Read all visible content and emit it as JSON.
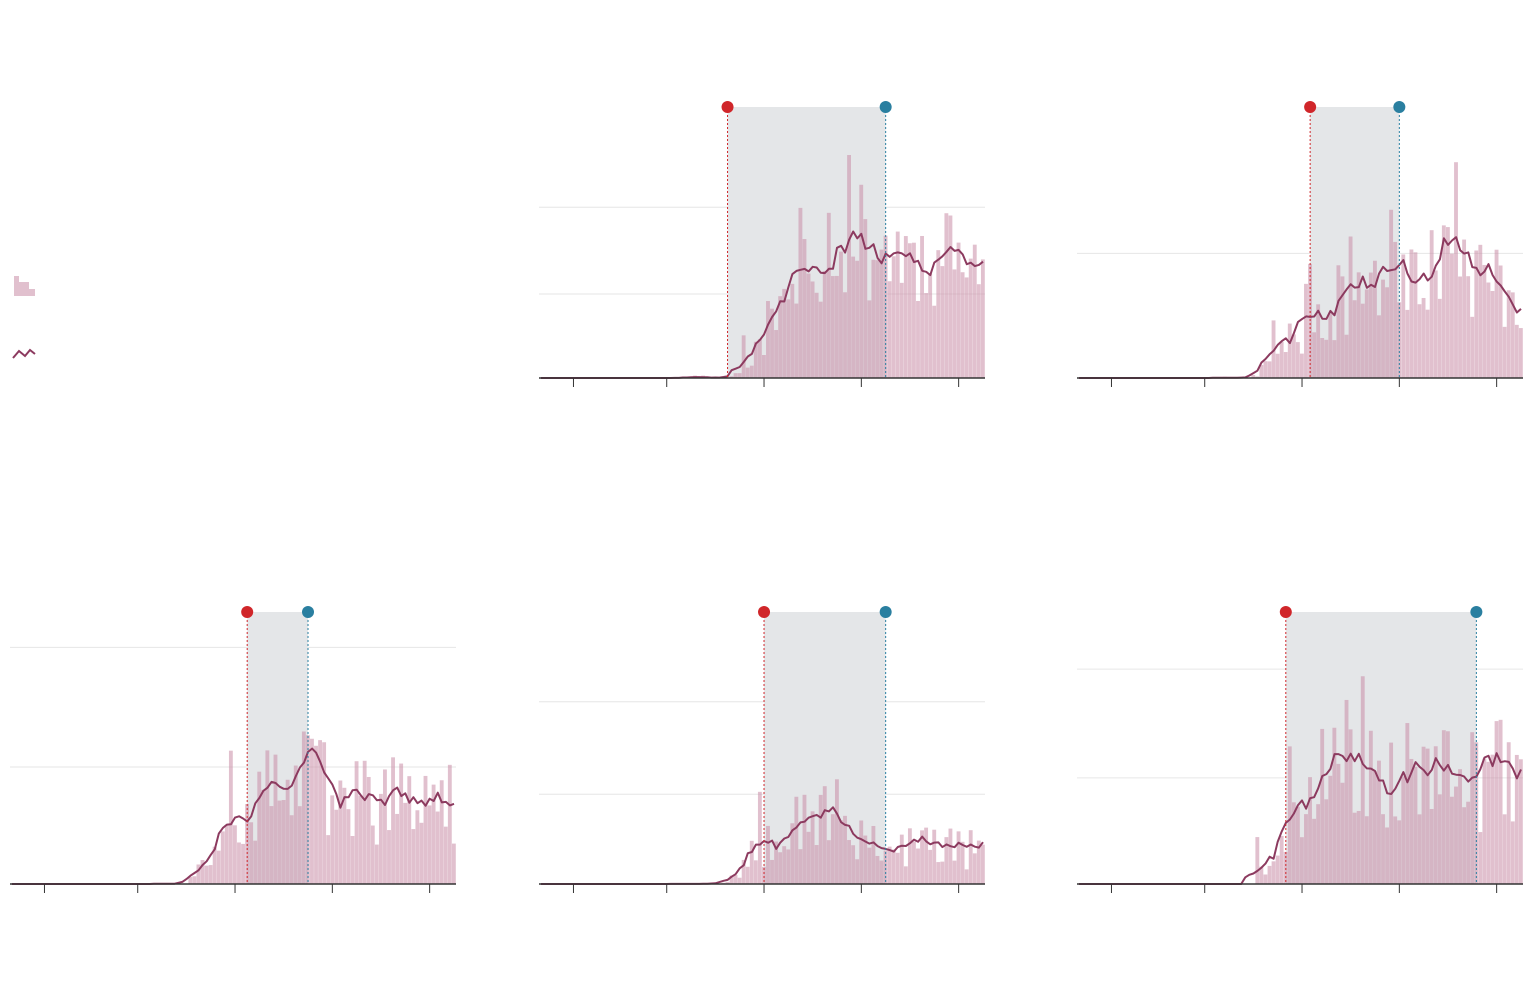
{
  "colors": {
    "bar": "#c98da6",
    "bar_opacity": 0.55,
    "line": "#8c3a5f",
    "start_marker": "#d0262a",
    "end_marker": "#2a7fa0",
    "shaded_band": "#e4e6e8",
    "gridline": "#e6e6e6",
    "axis": "#333333"
  },
  "legend": {
    "items": [
      {
        "name": "bar-swatch-icon",
        "symbol": "bars"
      },
      {
        "name": "line-swatch-icon",
        "symbol": "line"
      }
    ]
  },
  "chart_data": [
    {
      "type": "bar",
      "panel": "top-middle",
      "n_days": 110,
      "ylim": [
        0,
        1
      ],
      "gridlines": [
        0.31,
        0.63
      ],
      "onset": 45,
      "onset_level": 0.0,
      "peak_day": 74,
      "peak_level": 0.52,
      "late_level": 0.44,
      "noise": 0.28,
      "markers": {
        "start_day": 46,
        "end_day": 85
      },
      "x_ticks": [
        8,
        31,
        55,
        79,
        103
      ],
      "seed": 11
    },
    {
      "type": "bar",
      "panel": "top-right",
      "n_days": 110,
      "ylim": [
        0,
        1
      ],
      "gridlines": [
        0.46
      ],
      "onset": 45,
      "onset_level": 0.08,
      "peak_day": 85,
      "peak_level": 0.46,
      "late_level": 0.33,
      "noise": 0.3,
      "markers": {
        "start_day": 57,
        "end_day": 79
      },
      "x_ticks": [
        8,
        31,
        55,
        79,
        103
      ],
      "seed": 23
    },
    {
      "type": "bar",
      "panel": "bottom-left",
      "n_days": 110,
      "ylim": [
        0,
        1
      ],
      "gridlines": [
        0.43,
        0.87
      ],
      "onset": 44,
      "onset_level": 0.05,
      "peak_day": 70,
      "peak_level": 0.38,
      "late_level": 0.3,
      "noise": 0.35,
      "markers": {
        "start_day": 58,
        "end_day": 73
      },
      "x_ticks": [
        8,
        31,
        55,
        79,
        103
      ],
      "seed": 37
    },
    {
      "type": "bar",
      "panel": "bottom-middle",
      "n_days": 110,
      "ylim": [
        0,
        1
      ],
      "gridlines": [
        0.33,
        0.67
      ],
      "onset": 43,
      "onset_level": 0.0,
      "peak_day": 65,
      "peak_level": 0.3,
      "late_level": 0.14,
      "noise": 0.4,
      "markers": {
        "start_day": 55,
        "end_day": 85
      },
      "x_ticks": [
        8,
        31,
        55,
        79,
        103
      ],
      "seed": 53
    },
    {
      "type": "bar",
      "panel": "bottom-right",
      "n_days": 110,
      "ylim": [
        0,
        1
      ],
      "gridlines": [
        0.39,
        0.79
      ],
      "onset": 44,
      "onset_level": 0.04,
      "peak_day": 66,
      "peak_level": 0.46,
      "late_level": 0.4,
      "noise": 0.33,
      "markers": {
        "start_day": 51,
        "end_day": 98
      },
      "x_ticks": [
        8,
        31,
        55,
        79,
        103
      ],
      "seed": 71
    }
  ]
}
